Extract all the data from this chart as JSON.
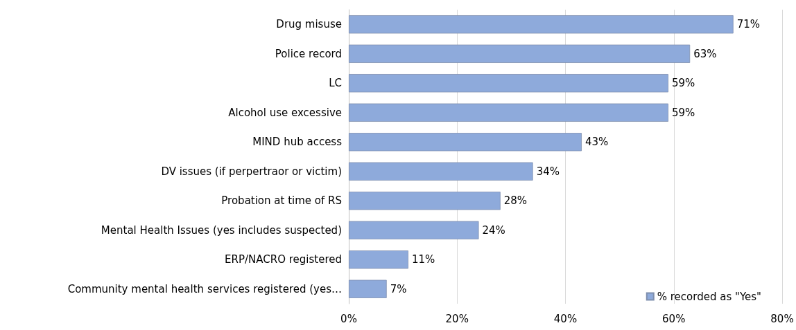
{
  "chart_data": {
    "type": "bar",
    "orientation": "horizontal",
    "categories": [
      "Drug misuse",
      "Police record",
      "LC",
      "Alcohol use excessive",
      "MIND hub access",
      "DV issues (if perpertraor or victim)",
      "Probation at time of RS",
      "Mental Health Issues (yes includes suspected)",
      "ERP/NACRO registered",
      "Community mental health services registered (yes…"
    ],
    "series": [
      {
        "name": "% recorded as \"Yes\"",
        "color": "#8eaadb",
        "values": [
          71,
          63,
          59,
          59,
          43,
          34,
          28,
          24,
          11,
          7
        ],
        "value_labels": [
          "71%",
          "63%",
          "59%",
          "59%",
          "43%",
          "34%",
          "28%",
          "24%",
          "11%",
          "7%"
        ]
      }
    ],
    "xlim": [
      0,
      80
    ],
    "xticks": [
      {
        "value": 0,
        "label": "0%"
      },
      {
        "value": 20,
        "label": "20%"
      },
      {
        "value": 40,
        "label": "40%"
      },
      {
        "value": 60,
        "label": "60%"
      },
      {
        "value": 80,
        "label": "80%"
      }
    ],
    "grid": "x",
    "legend": "bottom right"
  }
}
